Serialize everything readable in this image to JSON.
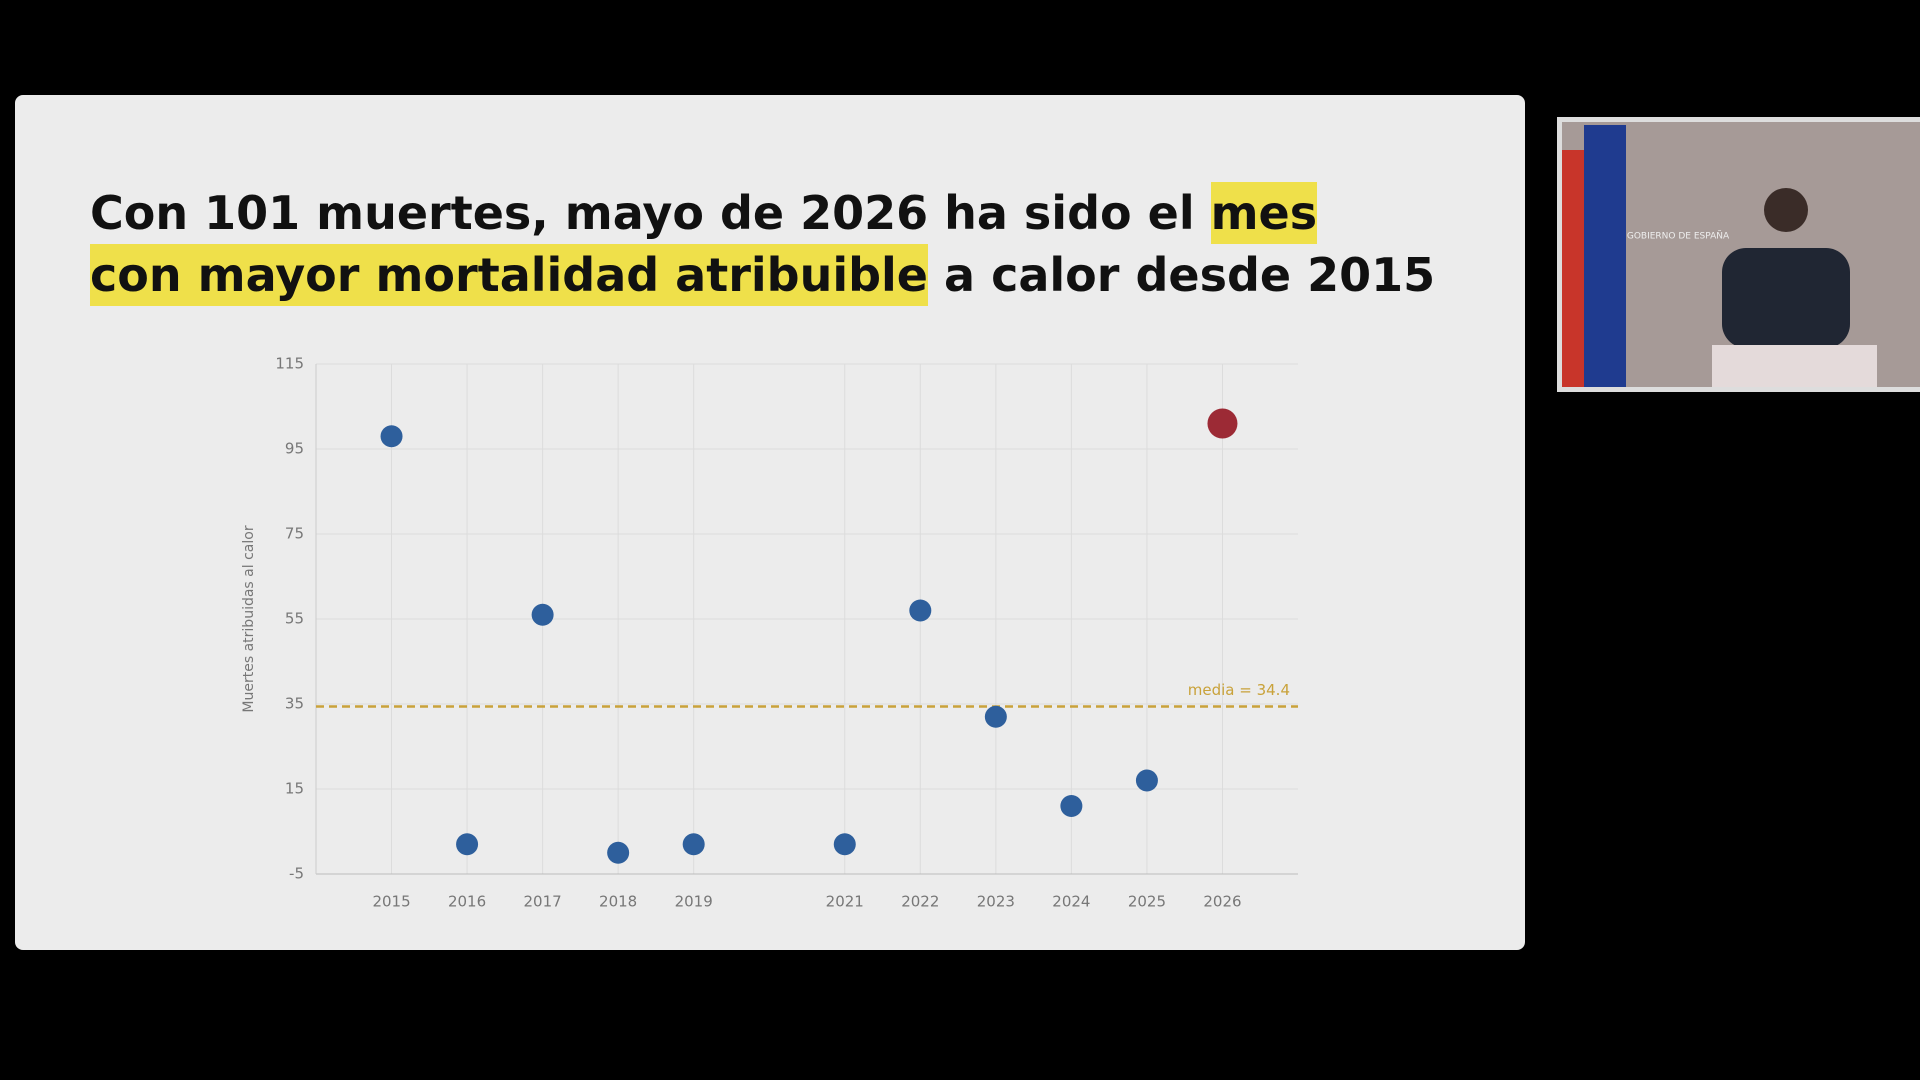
{
  "title_parts": [
    {
      "text": "Con 101 muertes, mayo de 2026 ha sido el ",
      "highlight": false
    },
    {
      "text": "mes",
      "highlight": true
    },
    {
      "text": "con mayor mortalidad atribuible",
      "highlight": true
    },
    {
      "text": " a calor desde 2015",
      "highlight": false
    }
  ],
  "highlight_color": "#efe04a",
  "inset": {
    "logo_text": "GOBIERNO DE ESPAÑA"
  },
  "chart_data": {
    "type": "scatter",
    "y_label": "Muertes atribuidas al calor",
    "x": [
      2015,
      2016,
      2017,
      2018,
      2019,
      2021,
      2022,
      2023,
      2024,
      2025,
      2026
    ],
    "values": [
      98,
      2,
      56,
      0,
      2,
      2,
      57,
      32,
      11,
      17,
      101
    ],
    "colors": [
      "#2e5f9c",
      "#2e5f9c",
      "#2e5f9c",
      "#2e5f9c",
      "#2e5f9c",
      "#2e5f9c",
      "#2e5f9c",
      "#2e5f9c",
      "#2e5f9c",
      "#2e5f9c",
      "#9c2a35"
    ],
    "xlim": [
      2014,
      2027
    ],
    "xticks": [
      2015,
      2016,
      2017,
      2018,
      2019,
      2021,
      2022,
      2023,
      2024,
      2025,
      2026
    ],
    "ylim": [
      -5,
      115
    ],
    "yticks": [
      -5,
      15,
      35,
      55,
      75,
      95,
      115
    ],
    "grid": true,
    "mean": {
      "value": 34.4,
      "label": "media = 34.4",
      "color": "#c9a23a"
    }
  }
}
